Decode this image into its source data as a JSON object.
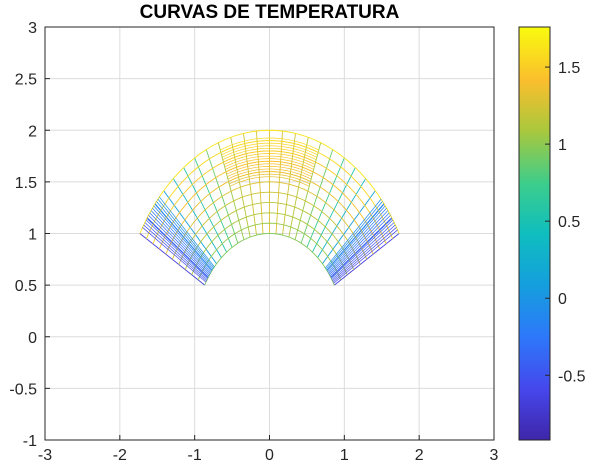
{
  "chart_data": {
    "type": "contour",
    "title": "CURVAS DE TEMPERATURA",
    "xlabel": "",
    "ylabel": "",
    "xlim": [
      -3,
      3
    ],
    "ylim": [
      -1,
      3
    ],
    "x_ticks": [
      "-3",
      "-2",
      "-1",
      "0",
      "1",
      "2",
      "3"
    ],
    "y_ticks": [
      "-1",
      "-0.5",
      "0",
      "0.5",
      "1",
      "1.5",
      "2",
      "2.5",
      "3"
    ],
    "grid": true,
    "domain": {
      "shape": "annular sector",
      "inner_radius": 1,
      "outer_radius": 2,
      "theta_start_deg": 30,
      "theta_end_deg": 150
    },
    "colorbar": {
      "position": "right",
      "colormap": "parula",
      "clim": [
        -0.92,
        1.76
      ],
      "ticks": [
        "-0.5",
        "0",
        "0.5",
        "1",
        "1.5"
      ]
    },
    "colors": {
      "grid": "#dcdcdc",
      "axis": "#262626"
    }
  }
}
